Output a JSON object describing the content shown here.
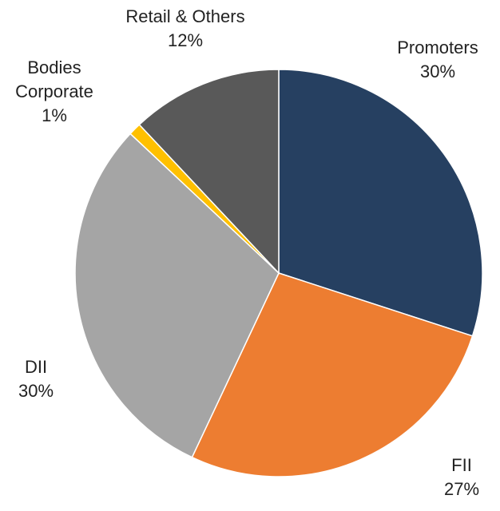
{
  "chart_data": {
    "type": "pie",
    "categories": [
      "Promoters",
      "FII",
      "DII",
      "Bodies Corporate",
      "Retail & Others"
    ],
    "values": [
      30,
      27,
      30,
      1,
      12
    ],
    "value_labels": [
      "30%",
      "27%",
      "30%",
      "1%",
      "12%"
    ],
    "colors": [
      "#264061",
      "#ed7d31",
      "#a5a5a5",
      "#ffc000",
      "#595959"
    ]
  }
}
